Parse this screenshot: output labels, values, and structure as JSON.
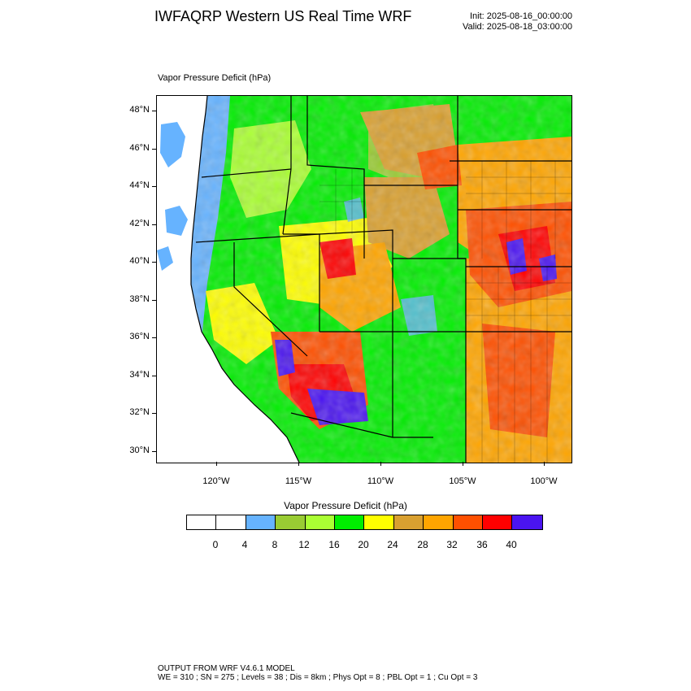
{
  "header": {
    "title": "IWFAQRP Western US Real Time WRF",
    "init": "Init: 2025-08-16_00:00:00",
    "valid": "Valid: 2025-08-18_03:00:00"
  },
  "map": {
    "field_label": "Vapor Pressure Deficit   (hPa)",
    "lat_labels": [
      "48°N",
      "46°N",
      "44°N",
      "42°N",
      "40°N",
      "38°N",
      "36°N",
      "34°N",
      "32°N",
      "30°N"
    ],
    "lon_labels": [
      "120°W",
      "115°W",
      "110°W",
      "105°W",
      "100°W"
    ]
  },
  "colorbar": {
    "title": "Vapor Pressure Deficit  (hPa)",
    "colors": [
      "#ffffff",
      "#ffffff",
      "#66b3ff",
      "#99cc33",
      "#aaff33",
      "#00ee00",
      "#ffff00",
      "#d9a030",
      "#ffa500",
      "#ff5000",
      "#ff0000",
      "#4a14f0"
    ],
    "labels": [
      "0",
      "4",
      "8",
      "12",
      "16",
      "20",
      "24",
      "28",
      "32",
      "36",
      "40"
    ]
  },
  "footer": {
    "line1": "OUTPUT FROM WRF V4.6.1 MODEL",
    "line2": "WE = 310 ; SN = 275 ; Levels = 38 ; Dis = 8km ; Phys Opt = 8 ; PBL Opt = 1 ; Cu Opt = 3"
  }
}
